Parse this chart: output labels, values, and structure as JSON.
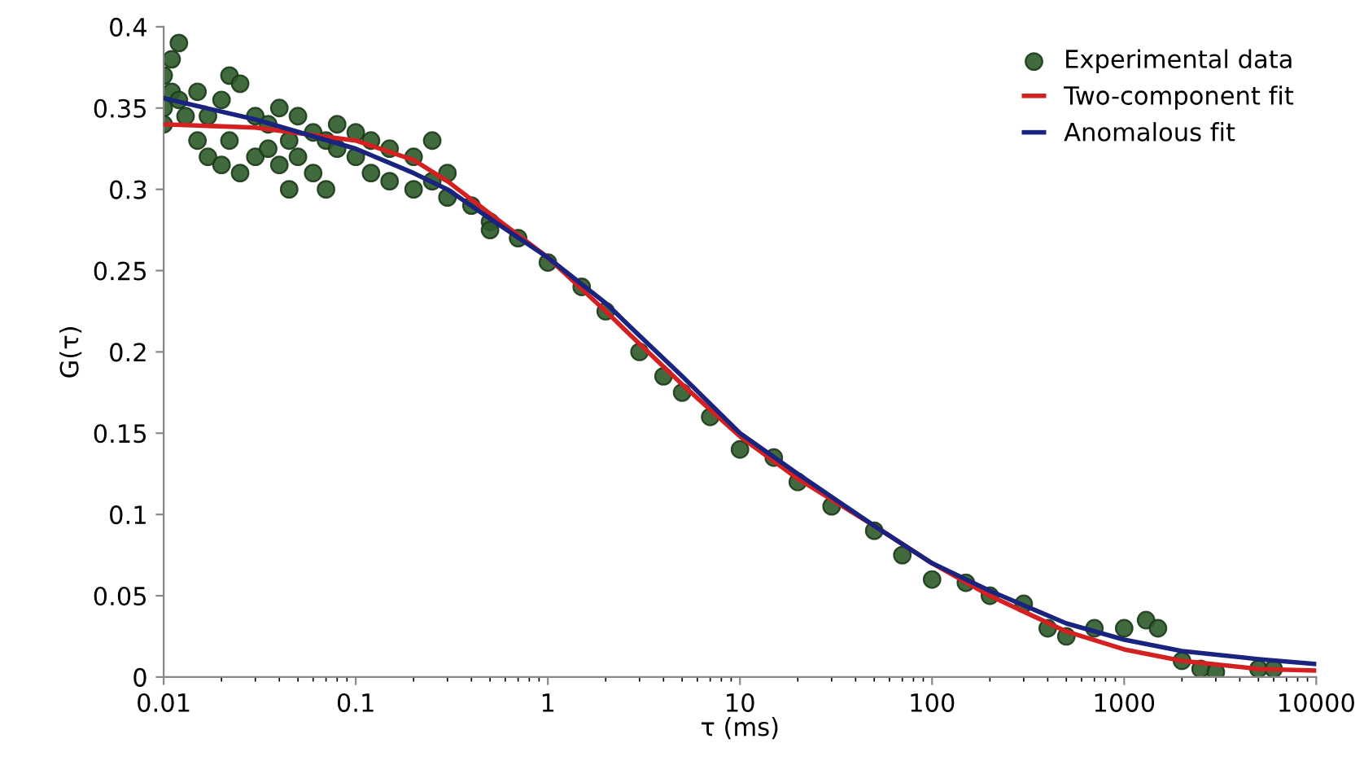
{
  "chart_data": {
    "type": "scatter",
    "xlabel": "τ (ms)",
    "ylabel": "G(τ)",
    "log": "x",
    "xlim": [
      0.01,
      10000
    ],
    "ylim": [
      0,
      0.4
    ],
    "xticks": [
      {
        "value": 0.01,
        "label": "0.01"
      },
      {
        "value": 0.1,
        "label": "0.1"
      },
      1,
      10,
      100,
      1000,
      10000
    ],
    "yticks": [
      0,
      0.05,
      0.1,
      0.15,
      0.2,
      0.25,
      0.3,
      0.35,
      0.4
    ],
    "grid": false,
    "legend": "top right",
    "series": [
      {
        "name": "Experimental data",
        "marker": "circle",
        "color": "#2e5a2a",
        "x": [
          0.01,
          0.01,
          0.01,
          0.011,
          0.011,
          0.012,
          0.012,
          0.013,
          0.015,
          0.015,
          0.017,
          0.017,
          0.02,
          0.02,
          0.022,
          0.022,
          0.025,
          0.025,
          0.03,
          0.03,
          0.035,
          0.035,
          0.04,
          0.04,
          0.045,
          0.045,
          0.05,
          0.05,
          0.06,
          0.06,
          0.07,
          0.07,
          0.08,
          0.08,
          0.1,
          0.1,
          0.12,
          0.12,
          0.15,
          0.15,
          0.2,
          0.2,
          0.25,
          0.25,
          0.3,
          0.3,
          0.4,
          0.5,
          0.5,
          0.7,
          1,
          1.5,
          2,
          3,
          4,
          5,
          7,
          10,
          15,
          20,
          30,
          50,
          70,
          100,
          150,
          200,
          300,
          400,
          500,
          700,
          1000,
          1300,
          1500,
          2000,
          2500,
          3000,
          5000,
          6000
        ],
        "values": [
          0.37,
          0.34,
          0.35,
          0.38,
          0.36,
          0.39,
          0.355,
          0.345,
          0.36,
          0.33,
          0.345,
          0.32,
          0.355,
          0.315,
          0.37,
          0.33,
          0.365,
          0.31,
          0.345,
          0.32,
          0.34,
          0.325,
          0.35,
          0.315,
          0.33,
          0.3,
          0.345,
          0.32,
          0.335,
          0.31,
          0.33,
          0.3,
          0.34,
          0.325,
          0.335,
          0.32,
          0.33,
          0.31,
          0.325,
          0.305,
          0.32,
          0.3,
          0.33,
          0.305,
          0.31,
          0.295,
          0.29,
          0.28,
          0.275,
          0.27,
          0.255,
          0.24,
          0.225,
          0.2,
          0.185,
          0.175,
          0.16,
          0.14,
          0.135,
          0.12,
          0.105,
          0.09,
          0.075,
          0.06,
          0.058,
          0.05,
          0.045,
          0.03,
          0.025,
          0.03,
          0.03,
          0.035,
          0.03,
          0.01,
          0.005,
          0.003,
          0.005,
          0.005
        ]
      },
      {
        "name": "Two-component fit",
        "type": "line",
        "color": "#d42020",
        "marker": "none",
        "x": [
          0.01,
          0.03,
          0.1,
          0.2,
          0.3,
          0.5,
          1,
          2,
          3,
          5,
          10,
          20,
          50,
          100,
          200,
          500,
          1000,
          2000,
          5000,
          10000
        ],
        "values": [
          0.34,
          0.338,
          0.33,
          0.318,
          0.305,
          0.285,
          0.258,
          0.225,
          0.205,
          0.18,
          0.148,
          0.122,
          0.093,
          0.07,
          0.05,
          0.028,
          0.017,
          0.01,
          0.005,
          0.004
        ]
      },
      {
        "name": "Anomalous fit",
        "type": "line",
        "color": "#1a237e",
        "marker": "none",
        "x": [
          0.01,
          0.03,
          0.1,
          0.2,
          0.3,
          0.5,
          1,
          2,
          3,
          5,
          10,
          20,
          50,
          100,
          200,
          500,
          1000,
          2000,
          5000,
          10000
        ],
        "values": [
          0.356,
          0.343,
          0.325,
          0.31,
          0.3,
          0.282,
          0.258,
          0.23,
          0.21,
          0.185,
          0.15,
          0.125,
          0.093,
          0.07,
          0.053,
          0.033,
          0.023,
          0.016,
          0.011,
          0.008
        ]
      }
    ]
  }
}
